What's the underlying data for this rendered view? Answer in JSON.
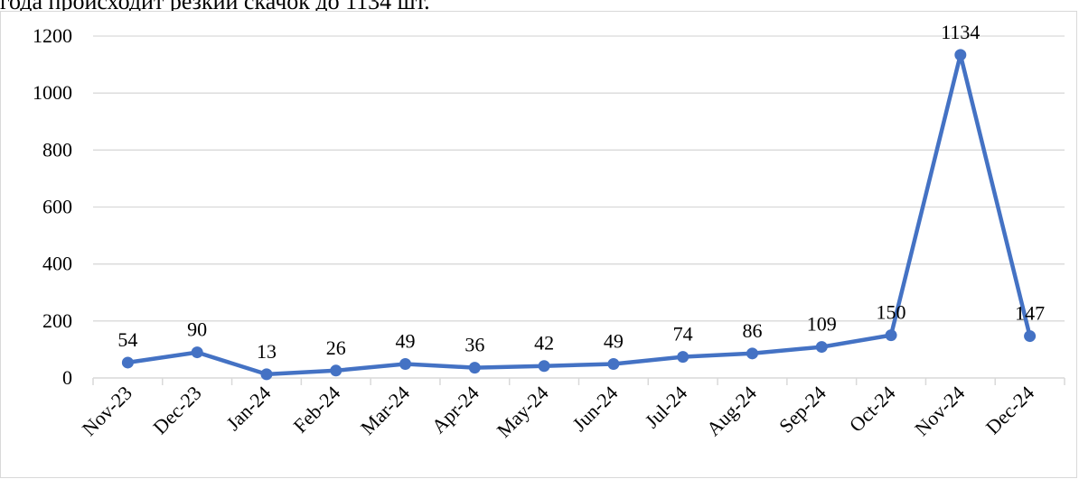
{
  "caption": "года происходит резкий скачок до 1134 шт.",
  "chart_data": {
    "type": "line",
    "categories": [
      "Nov-23",
      "Dec-23",
      "Jan-24",
      "Feb-24",
      "Mar-24",
      "Apr-24",
      "May-24",
      "Jun-24",
      "Jul-24",
      "Aug-24",
      "Sep-24",
      "Oct-24",
      "Nov-24",
      "Dec-24"
    ],
    "values": [
      54,
      90,
      13,
      26,
      49,
      36,
      42,
      49,
      74,
      86,
      109,
      150,
      1134,
      147
    ],
    "data_labels": [
      "54",
      "90",
      "13",
      "26",
      "49",
      "36",
      "42",
      "49",
      "74",
      "86",
      "109",
      "150",
      "1134",
      "147"
    ],
    "y_ticks": [
      0,
      200,
      400,
      600,
      800,
      1000,
      1200
    ],
    "y_tick_labels": [
      "0",
      "200",
      "400",
      "600",
      "800",
      "1000",
      "1200"
    ],
    "ylim": [
      0,
      1200
    ],
    "grid": true,
    "legend": "none",
    "series_color": "#4472c4",
    "grid_color": "#d9d9d9"
  }
}
